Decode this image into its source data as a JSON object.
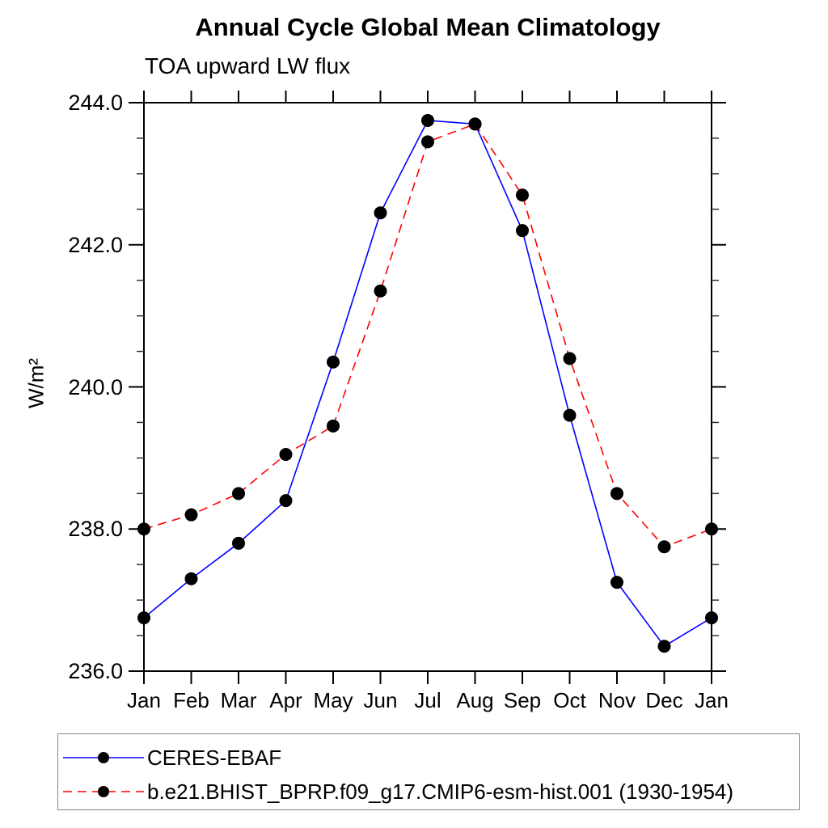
{
  "chart_data": {
    "type": "line",
    "title": "Annual Cycle Global Mean Climatology",
    "subtitle": "TOA upward LW flux",
    "ylabel": "W/m²",
    "x_tick_labels": [
      "Jan",
      "Feb",
      "Mar",
      "Apr",
      "May",
      "Jun",
      "Jul",
      "Aug",
      "Sep",
      "Oct",
      "Nov",
      "Dec",
      "Jan"
    ],
    "ylim": [
      236.0,
      244.0
    ],
    "y_major_ticks": [
      236.0,
      238.0,
      240.0,
      242.0,
      244.0
    ],
    "y_tick_labels": [
      "236.0",
      "238.0",
      "240.0",
      "242.0",
      "244.0"
    ],
    "y_minor_step": 0.5,
    "grid": false,
    "legend_position": "bottom",
    "marker": "filled-circle",
    "marker_color": "#000000",
    "axis_color": "#000000",
    "series": [
      {
        "name": "CERES-EBAF",
        "color": "#0000ff",
        "line_style": "solid",
        "values": [
          236.75,
          237.3,
          237.8,
          238.4,
          240.35,
          242.45,
          243.75,
          243.7,
          242.2,
          239.6,
          237.25,
          236.35,
          236.75
        ]
      },
      {
        "name": "b.e21.BHIST_BPRP.f09_g17.CMIP6-esm-hist.001 (1930-1954)",
        "color": "#ff0000",
        "line_style": "dashed",
        "values": [
          238.0,
          238.2,
          238.5,
          239.05,
          239.45,
          241.35,
          243.45,
          243.7,
          242.7,
          240.4,
          238.5,
          237.75,
          238.0
        ]
      }
    ]
  }
}
